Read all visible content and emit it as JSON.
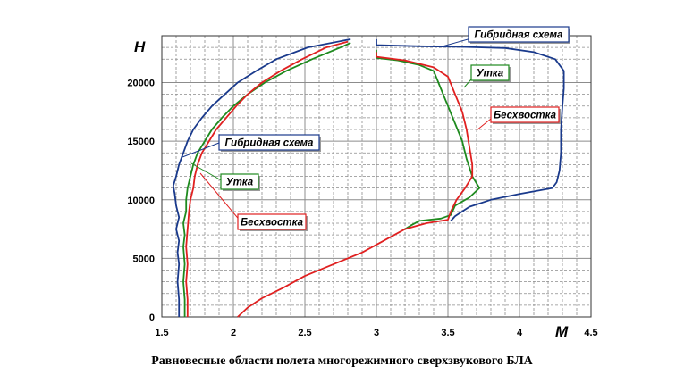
{
  "caption": "Равновесные области полета многорежимного сверхзвукового БЛА",
  "colors": {
    "hybrid": "#1a3a8c",
    "duck": "#1e8a1e",
    "tailless": "#e02020",
    "grid": "#8c8c8c",
    "label_border_hybrid": "#1a3a8c",
    "label_border_duck": "#1e8a1e",
    "label_border_tailless": "#e02020"
  },
  "chart_data": {
    "type": "line",
    "xlabel": "M",
    "ylabel": "H",
    "xlim": [
      1.5,
      4.5
    ],
    "ylim": [
      0,
      24000
    ],
    "x_ticks": [
      1.5,
      2,
      2.5,
      3,
      3.5,
      4,
      4.5
    ],
    "x_tick_labels": [
      "1.5",
      "2",
      "2.5",
      "3",
      "3.5",
      "4",
      "4.5"
    ],
    "y_ticks": [
      0,
      5000,
      10000,
      15000,
      20000
    ],
    "y_tick_labels": [
      "0",
      "5000",
      "10000",
      "15000",
      "20000"
    ],
    "grid": true,
    "series": [
      {
        "name": "Гибридная схема",
        "color_key": "hybrid",
        "segments": [
          [
            [
              1.62,
              0
            ],
            [
              1.62,
              1500
            ],
            [
              1.61,
              3000
            ],
            [
              1.62,
              4500
            ],
            [
              1.61,
              5500
            ],
            [
              1.62,
              6500
            ],
            [
              1.6,
              7500
            ],
            [
              1.62,
              8500
            ],
            [
              1.6,
              9500
            ],
            [
              1.59,
              10500
            ],
            [
              1.58,
              11200
            ],
            [
              1.6,
              12000
            ],
            [
              1.62,
              13000
            ],
            [
              1.65,
              14000
            ],
            [
              1.68,
              15000
            ],
            [
              1.72,
              16000
            ],
            [
              1.78,
              17000
            ],
            [
              1.85,
              18000
            ],
            [
              1.94,
              19000
            ],
            [
              2.03,
              20000
            ],
            [
              2.16,
              21000
            ],
            [
              2.3,
              22000
            ],
            [
              2.52,
              23000
            ],
            [
              2.82,
              23700
            ]
          ],
          [
            [
              3.0,
              23700
            ],
            [
              3.0,
              23200
            ],
            [
              3.3,
              23100
            ],
            [
              3.6,
              23050
            ],
            [
              3.9,
              22950
            ],
            [
              4.1,
              22600
            ],
            [
              4.25,
              22000
            ],
            [
              4.31,
              21000
            ],
            [
              4.31,
              19500
            ],
            [
              4.3,
              18000
            ],
            [
              4.29,
              16000
            ],
            [
              4.29,
              14000
            ],
            [
              4.28,
              12500
            ],
            [
              4.26,
              11500
            ],
            [
              4.23,
              11000
            ],
            [
              4.0,
              10500
            ],
            [
              3.8,
              10000
            ],
            [
              3.65,
              9400
            ],
            [
              3.55,
              8600
            ],
            [
              3.52,
              8200
            ]
          ]
        ]
      },
      {
        "name": "Утка",
        "color_key": "duck",
        "segments": [
          [
            [
              1.66,
              0
            ],
            [
              1.66,
              1500
            ],
            [
              1.65,
              3000
            ],
            [
              1.66,
              4500
            ],
            [
              1.65,
              6000
            ],
            [
              1.66,
              7000
            ],
            [
              1.65,
              8000
            ],
            [
              1.67,
              9000
            ],
            [
              1.67,
              10000
            ],
            [
              1.68,
              11000
            ],
            [
              1.7,
              12000
            ],
            [
              1.72,
              13000
            ],
            [
              1.75,
              14000
            ],
            [
              1.8,
              15000
            ],
            [
              1.85,
              16000
            ],
            [
              1.92,
              17000
            ],
            [
              2.0,
              18000
            ],
            [
              2.1,
              19000
            ],
            [
              2.22,
              20000
            ],
            [
              2.37,
              21000
            ],
            [
              2.55,
              22000
            ],
            [
              2.75,
              23000
            ],
            [
              2.82,
              23400
            ]
          ],
          [
            [
              3.0,
              22800
            ],
            [
              3.0,
              22100
            ],
            [
              3.15,
              21900
            ],
            [
              3.3,
              21500
            ],
            [
              3.4,
              21000
            ],
            [
              3.45,
              19500
            ],
            [
              3.5,
              18000
            ],
            [
              3.55,
              16500
            ],
            [
              3.6,
              15000
            ],
            [
              3.63,
              13500
            ],
            [
              3.67,
              12000
            ],
            [
              3.72,
              11000
            ],
            [
              3.65,
              10200
            ],
            [
              3.55,
              9500
            ],
            [
              3.52,
              8700
            ],
            [
              3.45,
              8400
            ],
            [
              3.3,
              8200
            ],
            [
              3.24,
              7800
            ],
            [
              3.2,
              7500
            ]
          ]
        ]
      },
      {
        "name": "Бесхвостка",
        "color_key": "tailless",
        "segments": [
          [
            [
              1.68,
              0
            ],
            [
              1.68,
              1500
            ],
            [
              1.67,
              3000
            ],
            [
              1.68,
              4500
            ],
            [
              1.67,
              6000
            ],
            [
              1.68,
              7500
            ],
            [
              1.69,
              9000
            ],
            [
              1.7,
              10000
            ],
            [
              1.72,
              11000
            ],
            [
              1.73,
              12000
            ],
            [
              1.75,
              13000
            ],
            [
              1.78,
              14000
            ],
            [
              1.83,
              15000
            ],
            [
              1.88,
              16000
            ],
            [
              1.95,
              17000
            ],
            [
              2.02,
              18000
            ],
            [
              2.1,
              19000
            ],
            [
              2.2,
              20000
            ],
            [
              2.33,
              21000
            ],
            [
              2.48,
              22000
            ],
            [
              2.65,
              23000
            ],
            [
              2.8,
              23500
            ]
          ],
          [
            [
              3.0,
              22600
            ],
            [
              3.0,
              22200
            ],
            [
              3.2,
              21900
            ],
            [
              3.4,
              21300
            ],
            [
              3.5,
              20500
            ],
            [
              3.55,
              19000
            ],
            [
              3.6,
              17500
            ],
            [
              3.63,
              16000
            ],
            [
              3.65,
              14500
            ],
            [
              3.67,
              13000
            ],
            [
              3.67,
              12000
            ],
            [
              3.62,
              11000
            ],
            [
              3.56,
              10000
            ],
            [
              3.52,
              9000
            ],
            [
              3.5,
              8300
            ],
            [
              3.35,
              8000
            ],
            [
              3.2,
              7500
            ],
            [
              3.05,
              6500
            ],
            [
              2.9,
              5500
            ],
            [
              2.7,
              4500
            ],
            [
              2.5,
              3500
            ],
            [
              2.35,
              2500
            ],
            [
              2.2,
              1600
            ],
            [
              2.1,
              800
            ],
            [
              2.03,
              0
            ]
          ]
        ]
      }
    ],
    "annotations": [
      {
        "text": "Гибридная схема",
        "series": "Гибридная схема"
      },
      {
        "text": "Утка",
        "series": "Утка"
      },
      {
        "text": "Бесхвостка",
        "series": "Бесхвостка"
      },
      {
        "text": "Гибридная схема",
        "series": "Гибридная схема"
      },
      {
        "text": "Утка",
        "series": "Утка"
      },
      {
        "text": "Бесхвостка",
        "series": "Бесхвостка"
      }
    ]
  }
}
